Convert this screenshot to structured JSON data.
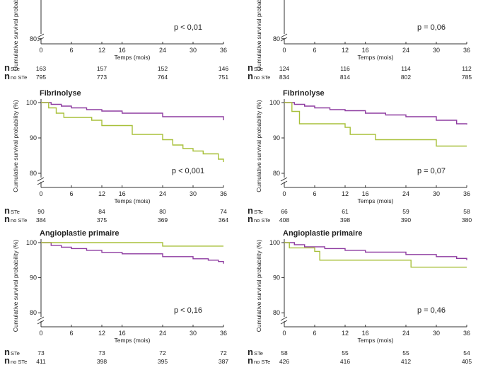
{
  "legend": {
    "n_label": "n",
    "ste_sub": "STe",
    "nostе_sub": "no STe"
  },
  "colors": {
    "no_ste": "#8e3ba0",
    "ste": "#a8c03a",
    "axis": "#333333"
  },
  "chart_data": [
    {
      "type": "line",
      "row": 0,
      "col": 0,
      "title": "",
      "ylabel": "Cumulative survival probability (%)",
      "xlabel": "Temps (mois)",
      "x_ticks": [
        0,
        6,
        12,
        16,
        24,
        30,
        36
      ],
      "y_ticks": [
        80
      ],
      "xlim": [
        0,
        36
      ],
      "ylim": [
        78,
        102
      ],
      "pvalue": "p < 0,01",
      "series": [],
      "at_risk": {
        "ste": [
          "163",
          "157",
          "152",
          "146"
        ],
        "no_ste": [
          "795",
          "773",
          "764",
          "751"
        ]
      }
    },
    {
      "type": "line",
      "row": 0,
      "col": 1,
      "title": "",
      "ylabel": "Cumulative survival probability (%)",
      "xlabel": "Temps (mois)",
      "x_ticks": [
        0,
        6,
        12,
        16,
        24,
        30,
        36
      ],
      "y_ticks": [
        80
      ],
      "xlim": [
        0,
        36
      ],
      "ylim": [
        78,
        102
      ],
      "pvalue": "p = 0,06",
      "series": [],
      "at_risk": {
        "ste": [
          "124",
          "116",
          "114",
          "112"
        ],
        "no_ste": [
          "834",
          "814",
          "802",
          "785"
        ]
      }
    },
    {
      "type": "line",
      "row": 1,
      "col": 0,
      "title": "Fibrinolyse",
      "ylabel": "Cumulative survival probability (%)",
      "xlabel": "Temps (mois)",
      "x_ticks": [
        0,
        6,
        12,
        16,
        24,
        30,
        36
      ],
      "y_ticks": [
        100,
        90,
        80
      ],
      "xlim": [
        0,
        36
      ],
      "ylim": [
        76,
        101
      ],
      "pvalue": "p < 0,001",
      "series": [
        {
          "key": "no_ste",
          "x": [
            0,
            2,
            4,
            6,
            9,
            12,
            16,
            24,
            36
          ],
          "y": [
            100,
            99.5,
            99,
            98.5,
            98,
            97.6,
            97,
            96,
            95
          ]
        },
        {
          "key": "ste",
          "x": [
            0,
            1.5,
            3,
            4.5,
            10,
            12,
            18,
            24,
            26,
            28,
            30,
            32,
            35,
            36
          ],
          "y": [
            100,
            98.5,
            97,
            95.8,
            95,
            93.5,
            91,
            89.5,
            88,
            87,
            86.3,
            85.5,
            84,
            83.2
          ]
        }
      ],
      "at_risk": {
        "ste": [
          "90",
          "84",
          "80",
          "74"
        ],
        "no_ste": [
          "384",
          "375",
          "369",
          "364"
        ]
      }
    },
    {
      "type": "line",
      "row": 1,
      "col": 1,
      "title": "Fibrinolyse",
      "ylabel": "Cumulative survival probability (%)",
      "xlabel": "Temps (mois)",
      "x_ticks": [
        0,
        6,
        12,
        16,
        24,
        30,
        36
      ],
      "y_ticks": [
        100,
        90,
        80
      ],
      "xlim": [
        0,
        36
      ],
      "ylim": [
        76,
        101
      ],
      "pvalue": "p = 0,07",
      "series": [
        {
          "key": "no_ste",
          "x": [
            0,
            2,
            4,
            6,
            9,
            12,
            16,
            20,
            24,
            30,
            34,
            36
          ],
          "y": [
            100,
            99.5,
            99,
            98.5,
            98,
            97.7,
            97,
            96.5,
            96,
            95,
            94,
            93.8
          ]
        },
        {
          "key": "ste",
          "x": [
            0,
            1.5,
            3,
            12,
            13,
            18,
            30,
            36
          ],
          "y": [
            100,
            97.5,
            94,
            93,
            91,
            89.5,
            87.7,
            87.7
          ]
        }
      ],
      "at_risk": {
        "ste": [
          "66",
          "61",
          "59",
          "58"
        ],
        "no_ste": [
          "408",
          "398",
          "390",
          "380"
        ]
      }
    },
    {
      "type": "line",
      "row": 2,
      "col": 0,
      "title": "Angioplastie primaire",
      "ylabel": "Cumulative survival probability (%)",
      "xlabel": "Temps (mois)",
      "x_ticks": [
        0,
        6,
        12,
        16,
        24,
        30,
        36
      ],
      "y_ticks": [
        100,
        90,
        80
      ],
      "xlim": [
        0,
        36
      ],
      "ylim": [
        76,
        101
      ],
      "pvalue": "p < 0,16",
      "series": [
        {
          "key": "no_ste",
          "x": [
            0,
            2,
            4,
            6,
            9,
            12,
            16,
            24,
            30,
            33,
            35,
            36
          ],
          "y": [
            100,
            99.2,
            98.7,
            98.3,
            97.8,
            97.2,
            96.8,
            96,
            95.4,
            95,
            94.6,
            94
          ]
        },
        {
          "key": "ste",
          "x": [
            0,
            24,
            36
          ],
          "y": [
            100,
            99,
            99
          ]
        }
      ],
      "at_risk": {
        "ste": [
          "73",
          "73",
          "72",
          "72"
        ],
        "no_ste": [
          "411",
          "398",
          "395",
          "387"
        ]
      }
    },
    {
      "type": "line",
      "row": 2,
      "col": 1,
      "title": "Angioplastie primaire",
      "ylabel": "Cumulative survival probability (%)",
      "xlabel": "Temps (mois)",
      "x_ticks": [
        0,
        6,
        12,
        16,
        24,
        30,
        36
      ],
      "y_ticks": [
        100,
        90,
        80
      ],
      "xlim": [
        0,
        36
      ],
      "ylim": [
        76,
        101
      ],
      "pvalue": "p = 0,46",
      "series": [
        {
          "key": "no_ste",
          "x": [
            0,
            2,
            4,
            8,
            12,
            16,
            24,
            30,
            34,
            36
          ],
          "y": [
            100,
            99.4,
            98.8,
            98.3,
            97.8,
            97.3,
            96.6,
            96,
            95.5,
            95
          ]
        },
        {
          "key": "ste",
          "x": [
            0,
            1,
            6,
            7,
            24,
            25,
            36
          ],
          "y": [
            100,
            98.5,
            97.5,
            95,
            95,
            93,
            93
          ]
        }
      ],
      "at_risk": {
        "ste": [
          "58",
          "55",
          "55",
          "54"
        ],
        "no_ste": [
          "426",
          "416",
          "412",
          "405"
        ]
      }
    }
  ]
}
